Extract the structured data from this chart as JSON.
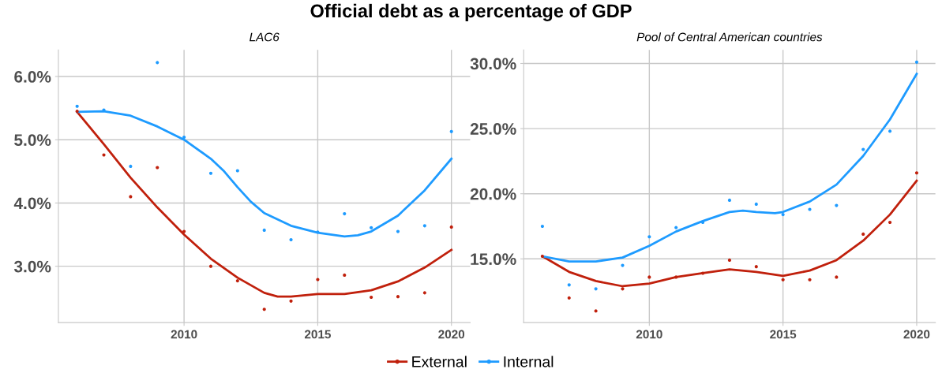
{
  "chart_data": [
    {
      "type": "scatter",
      "title": "Official debt as a percentage of GDP",
      "subtitle": "LAC6",
      "legend": "bottom",
      "grid": true,
      "xlim": [
        2005.3,
        2020.7
      ],
      "xticks": [
        2010,
        2015,
        2020
      ],
      "ylim": [
        2.11,
        6.42
      ],
      "yticks": [
        {
          "value": 3,
          "label": "3.0%"
        },
        {
          "value": 4,
          "label": "4.0%"
        },
        {
          "value": 5,
          "label": "5.0%"
        },
        {
          "value": 6,
          "label": "6.0%"
        }
      ],
      "series": [
        {
          "name": "External",
          "marker": "circle",
          "color": "#c0200c",
          "x": [
            2006,
            2007,
            2008,
            2009,
            2010,
            2011,
            2012,
            2013,
            2014,
            2015,
            2016,
            2017,
            2018,
            2019,
            2020
          ],
          "values": [
            5.45,
            4.76,
            4.1,
            4.56,
            3.55,
            3.0,
            2.77,
            2.32,
            2.45,
            2.79,
            2.86,
            2.51,
            2.52,
            2.58,
            3.62
          ]
        },
        {
          "name": "Internal",
          "marker": "circle",
          "color": "#1e9bff",
          "x": [
            2006,
            2007,
            2008,
            2009,
            2010,
            2011,
            2012,
            2013,
            2014,
            2015,
            2016,
            2017,
            2018,
            2019,
            2020
          ],
          "values": [
            5.53,
            5.47,
            4.58,
            6.22,
            5.04,
            4.47,
            4.51,
            3.57,
            3.42,
            3.54,
            3.83,
            3.61,
            3.55,
            3.64,
            5.13
          ]
        },
        {
          "type": "line",
          "color": "#c0200c",
          "x": [
            2006,
            2007,
            2008,
            2009,
            2010,
            2011,
            2012,
            2013,
            2013.5,
            2014,
            2015,
            2016,
            2017,
            2018,
            2019,
            2020
          ],
          "values": [
            5.44,
            4.93,
            4.4,
            3.93,
            3.5,
            3.12,
            2.82,
            2.58,
            2.52,
            2.52,
            2.56,
            2.56,
            2.62,
            2.76,
            2.98,
            3.26
          ]
        },
        {
          "type": "line",
          "color": "#1e9bff",
          "x": [
            2006,
            2007,
            2008,
            2009,
            2010,
            2011,
            2011.5,
            2012,
            2012.5,
            2013,
            2014,
            2015,
            2016,
            2016.5,
            2017,
            2018,
            2019,
            2020
          ],
          "values": [
            5.44,
            5.45,
            5.38,
            5.21,
            5.0,
            4.7,
            4.5,
            4.25,
            4.02,
            3.84,
            3.64,
            3.53,
            3.47,
            3.49,
            3.55,
            3.8,
            4.2,
            4.7
          ]
        }
      ]
    },
    {
      "type": "scatter",
      "subtitle": "Pool of Central American countries",
      "grid": true,
      "xlim": [
        2005.3,
        2020.7
      ],
      "xticks": [
        2010,
        2015,
        2020
      ],
      "ylim": [
        10.11,
        31.04
      ],
      "yticks": [
        {
          "value": 15,
          "label": "15.0%"
        },
        {
          "value": 20,
          "label": "20.0%"
        },
        {
          "value": 25,
          "label": "25.0%"
        },
        {
          "value": 30,
          "label": "30.0%"
        }
      ],
      "series": [
        {
          "name": "External",
          "marker": "circle",
          "color": "#c0200c",
          "x": [
            2006,
            2007,
            2008,
            2009,
            2010,
            2011,
            2012,
            2013,
            2014,
            2015,
            2016,
            2017,
            2018,
            2019,
            2020
          ],
          "values": [
            15.2,
            12.0,
            11.0,
            12.7,
            13.6,
            13.6,
            13.9,
            14.9,
            14.4,
            13.4,
            13.4,
            13.6,
            16.9,
            17.8,
            21.6
          ]
        },
        {
          "name": "Internal",
          "marker": "circle",
          "color": "#1e9bff",
          "x": [
            2006,
            2007,
            2008,
            2009,
            2010,
            2011,
            2012,
            2013,
            2014,
            2015,
            2016,
            2017,
            2018,
            2019,
            2020
          ],
          "values": [
            17.5,
            13.0,
            12.7,
            14.5,
            16.7,
            17.4,
            17.8,
            19.5,
            19.2,
            18.4,
            18.8,
            19.1,
            23.4,
            24.8,
            30.1
          ]
        },
        {
          "type": "line",
          "color": "#c0200c",
          "x": [
            2006,
            2007,
            2008,
            2009,
            2010,
            2011,
            2012,
            2013,
            2014,
            2015,
            2016,
            2017,
            2018,
            2019,
            2020
          ],
          "values": [
            15.2,
            14.0,
            13.3,
            12.9,
            13.1,
            13.6,
            13.9,
            14.2,
            14.0,
            13.7,
            14.1,
            14.9,
            16.4,
            18.4,
            21.0
          ]
        },
        {
          "type": "line",
          "color": "#1e9bff",
          "x": [
            2006,
            2007,
            2008,
            2009,
            2010,
            2011,
            2012,
            2013,
            2013.5,
            2014,
            2014.7,
            2015,
            2016,
            2017,
            2018,
            2019,
            2020
          ],
          "values": [
            15.2,
            14.8,
            14.8,
            15.1,
            16.0,
            17.1,
            17.9,
            18.6,
            18.7,
            18.6,
            18.5,
            18.6,
            19.4,
            20.7,
            22.9,
            25.7,
            29.2
          ]
        }
      ]
    }
  ]
}
